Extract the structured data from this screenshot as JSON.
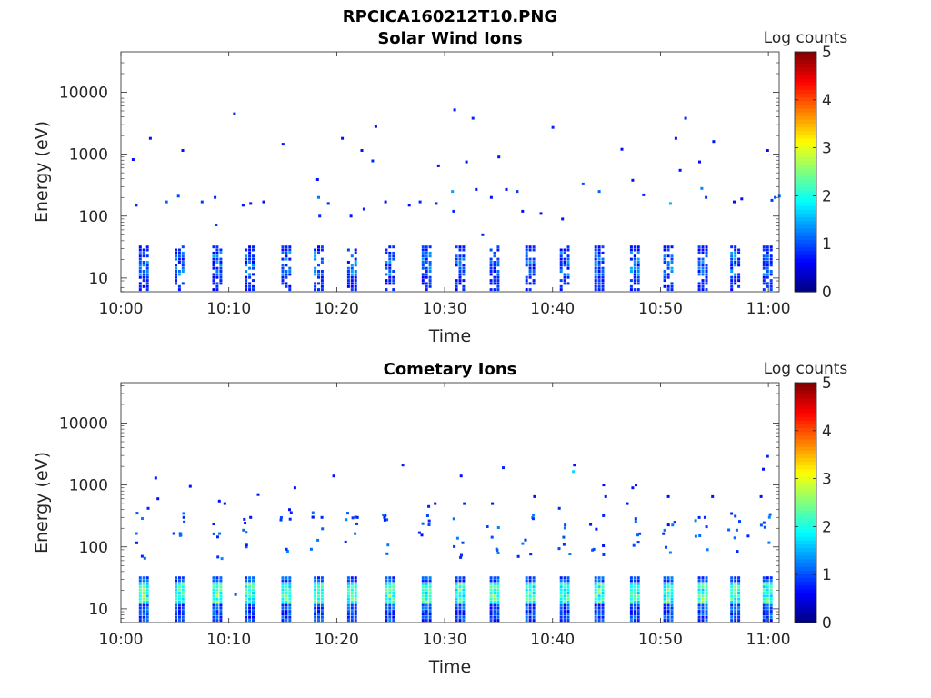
{
  "figure": {
    "title": "RPCICA160212T10.PNG"
  },
  "chart_data": [
    {
      "type": "heatmap",
      "title": "Solar Wind Ions",
      "xlabel": "Time",
      "ylabel": "Energy (eV)",
      "x_ticks": [
        "10:00",
        "10:10",
        "10:20",
        "10:30",
        "10:40",
        "10:50",
        "11:00"
      ],
      "x_tick_minutes": [
        0,
        10,
        20,
        30,
        40,
        50,
        60
      ],
      "xlim_minutes": [
        0,
        61
      ],
      "y_scale": "log",
      "y_ticks": [
        "10",
        "100",
        "1000",
        "10000"
      ],
      "y_tick_values": [
        10,
        100,
        1000,
        10000
      ],
      "ylim": [
        6,
        45000
      ],
      "colorbar": {
        "label": "Log counts",
        "ticks": [
          "0",
          "1",
          "2",
          "3",
          "4",
          "5"
        ],
        "range": [
          0,
          5
        ],
        "colormap": "jet"
      },
      "sweep_minutes": [
        2,
        5.3,
        8.8,
        11.8,
        15.2,
        18.2,
        21.3,
        24.8,
        28.2,
        31.3,
        34.5,
        37.8,
        41,
        44.2,
        47.5,
        50.6,
        53.8,
        56.8,
        59.8
      ],
      "events": [
        {
          "t": 1.0,
          "e": 820,
          "v": 0.7
        },
        {
          "t": 1.3,
          "e": 150,
          "v": 0.8
        },
        {
          "t": 2.6,
          "e": 1800,
          "v": 0.7
        },
        {
          "t": 4.1,
          "e": 170,
          "v": 1.1
        },
        {
          "t": 5.2,
          "e": 210,
          "v": 1.0
        },
        {
          "t": 5.6,
          "e": 1150,
          "v": 0.7
        },
        {
          "t": 7.4,
          "e": 170,
          "v": 0.9
        },
        {
          "t": 8.6,
          "e": 200,
          "v": 0.8
        },
        {
          "t": 8.7,
          "e": 72,
          "v": 0.9
        },
        {
          "t": 10.4,
          "e": 4500,
          "v": 0.8
        },
        {
          "t": 11.2,
          "e": 150,
          "v": 0.7
        },
        {
          "t": 11.9,
          "e": 160,
          "v": 0.7
        },
        {
          "t": 14.9,
          "e": 1450,
          "v": 0.7
        },
        {
          "t": 18.1,
          "e": 390,
          "v": 0.7
        },
        {
          "t": 18.2,
          "e": 200,
          "v": 1.2
        },
        {
          "t": 18.3,
          "e": 100,
          "v": 0.8
        },
        {
          "t": 19.1,
          "e": 160,
          "v": 0.8
        },
        {
          "t": 20.4,
          "e": 1800,
          "v": 0.7
        },
        {
          "t": 21.2,
          "e": 100,
          "v": 0.7
        },
        {
          "t": 22.2,
          "e": 1150,
          "v": 0.7
        },
        {
          "t": 22.4,
          "e": 130,
          "v": 0.8
        },
        {
          "t": 23.2,
          "e": 780,
          "v": 0.8
        },
        {
          "t": 23.5,
          "e": 2800,
          "v": 0.7
        },
        {
          "t": 24.4,
          "e": 170,
          "v": 0.7
        },
        {
          "t": 26.6,
          "e": 150,
          "v": 0.7
        },
        {
          "t": 29.1,
          "e": 160,
          "v": 0.8
        },
        {
          "t": 29.3,
          "e": 650,
          "v": 0.7
        },
        {
          "t": 30.6,
          "e": 250,
          "v": 1.4
        },
        {
          "t": 30.7,
          "e": 120,
          "v": 0.8
        },
        {
          "t": 30.8,
          "e": 5200,
          "v": 0.7
        },
        {
          "t": 31.9,
          "e": 750,
          "v": 0.7
        },
        {
          "t": 32.5,
          "e": 3800,
          "v": 0.8
        },
        {
          "t": 32.8,
          "e": 270,
          "v": 0.7
        },
        {
          "t": 33.4,
          "e": 50,
          "v": 0.8
        },
        {
          "t": 34.2,
          "e": 200,
          "v": 0.7
        },
        {
          "t": 34.9,
          "e": 900,
          "v": 0.7
        },
        {
          "t": 35.6,
          "e": 270,
          "v": 0.7
        },
        {
          "t": 36.6,
          "e": 250,
          "v": 0.9
        },
        {
          "t": 37.1,
          "e": 120,
          "v": 0.7
        },
        {
          "t": 38.8,
          "e": 110,
          "v": 0.7
        },
        {
          "t": 39.9,
          "e": 2700,
          "v": 0.8
        },
        {
          "t": 40.8,
          "e": 90,
          "v": 0.7
        },
        {
          "t": 42.7,
          "e": 330,
          "v": 1.0
        },
        {
          "t": 44.2,
          "e": 250,
          "v": 1.1
        },
        {
          "t": 46.3,
          "e": 1200,
          "v": 0.7
        },
        {
          "t": 47.3,
          "e": 380,
          "v": 0.7
        },
        {
          "t": 48.3,
          "e": 220,
          "v": 0.8
        },
        {
          "t": 50.8,
          "e": 160,
          "v": 1.5
        },
        {
          "t": 51.3,
          "e": 1800,
          "v": 0.7
        },
        {
          "t": 51.7,
          "e": 550,
          "v": 0.7
        },
        {
          "t": 52.2,
          "e": 3800,
          "v": 0.8
        },
        {
          "t": 53.5,
          "e": 750,
          "v": 0.7
        },
        {
          "t": 53.7,
          "e": 280,
          "v": 1.3
        },
        {
          "t": 54.1,
          "e": 200,
          "v": 0.9
        },
        {
          "t": 54.8,
          "e": 1600,
          "v": 0.7
        },
        {
          "t": 56.7,
          "e": 170,
          "v": 0.7
        },
        {
          "t": 57.4,
          "e": 190,
          "v": 0.7
        },
        {
          "t": 59.8,
          "e": 1150,
          "v": 0.7
        },
        {
          "t": 60.2,
          "e": 180,
          "v": 0.9
        },
        {
          "t": 60.5,
          "e": 200,
          "v": 1.0
        },
        {
          "t": 60.9,
          "e": 210,
          "v": 1.2
        },
        {
          "t": 27.6,
          "e": 170,
          "v": 0.8
        },
        {
          "t": 13.1,
          "e": 170,
          "v": 0.7
        }
      ]
    },
    {
      "type": "heatmap",
      "title": "Cometary Ions",
      "xlabel": "Time",
      "ylabel": "Energy (eV)",
      "x_ticks": [
        "10:00",
        "10:10",
        "10:20",
        "10:30",
        "10:40",
        "10:50",
        "11:00"
      ],
      "x_tick_minutes": [
        0,
        10,
        20,
        30,
        40,
        50,
        60
      ],
      "xlim_minutes": [
        0,
        61
      ],
      "y_scale": "log",
      "y_ticks": [
        "10",
        "100",
        "1000",
        "10000"
      ],
      "y_tick_values": [
        10,
        100,
        1000,
        10000
      ],
      "ylim": [
        6,
        45000
      ],
      "colorbar": {
        "label": "Log counts",
        "ticks": [
          "0",
          "1",
          "2",
          "3",
          "4",
          "5"
        ],
        "range": [
          0,
          5
        ],
        "colormap": "jet"
      },
      "sweep_minutes": [
        2,
        5.3,
        8.8,
        11.8,
        15.2,
        18.2,
        21.3,
        24.8,
        28.2,
        31.3,
        34.5,
        37.8,
        41,
        44.2,
        47.5,
        50.6,
        53.8,
        56.8,
        59.8
      ],
      "events": [
        {
          "t": 2.4,
          "e": 420,
          "v": 0.8
        },
        {
          "t": 3.1,
          "e": 1300,
          "v": 0.7
        },
        {
          "t": 3.3,
          "e": 600,
          "v": 0.7
        },
        {
          "t": 5.7,
          "e": 300,
          "v": 0.8
        },
        {
          "t": 6.3,
          "e": 950,
          "v": 0.7
        },
        {
          "t": 9.0,
          "e": 550,
          "v": 0.7
        },
        {
          "t": 9.5,
          "e": 500,
          "v": 0.7
        },
        {
          "t": 11.9,
          "e": 300,
          "v": 0.7
        },
        {
          "t": 12.6,
          "e": 700,
          "v": 0.7
        },
        {
          "t": 15.5,
          "e": 400,
          "v": 0.7
        },
        {
          "t": 16.0,
          "e": 900,
          "v": 0.7
        },
        {
          "t": 18.5,
          "e": 300,
          "v": 0.8
        },
        {
          "t": 19.6,
          "e": 1400,
          "v": 0.7
        },
        {
          "t": 21.8,
          "e": 300,
          "v": 0.8
        },
        {
          "t": 24.3,
          "e": 300,
          "v": 0.7
        },
        {
          "t": 26.0,
          "e": 2100,
          "v": 0.8
        },
        {
          "t": 28.4,
          "e": 450,
          "v": 0.8
        },
        {
          "t": 29.0,
          "e": 500,
          "v": 0.7
        },
        {
          "t": 31.4,
          "e": 1400,
          "v": 0.7
        },
        {
          "t": 31.7,
          "e": 500,
          "v": 0.8
        },
        {
          "t": 34.3,
          "e": 500,
          "v": 0.7
        },
        {
          "t": 35.3,
          "e": 1900,
          "v": 0.8
        },
        {
          "t": 36.7,
          "e": 70,
          "v": 0.8
        },
        {
          "t": 38.2,
          "e": 650,
          "v": 0.7
        },
        {
          "t": 40.5,
          "e": 420,
          "v": 0.8
        },
        {
          "t": 41.8,
          "e": 1650,
          "v": 1.7
        },
        {
          "t": 41.9,
          "e": 2100,
          "v": 0.7
        },
        {
          "t": 43.4,
          "e": 230,
          "v": 0.7
        },
        {
          "t": 44.6,
          "e": 1000,
          "v": 0.7
        },
        {
          "t": 44.8,
          "e": 650,
          "v": 0.7
        },
        {
          "t": 47.3,
          "e": 900,
          "v": 0.7
        },
        {
          "t": 47.6,
          "e": 1000,
          "v": 0.7
        },
        {
          "t": 50.6,
          "e": 650,
          "v": 0.7
        },
        {
          "t": 51.2,
          "e": 250,
          "v": 0.8
        },
        {
          "t": 54.0,
          "e": 300,
          "v": 0.8
        },
        {
          "t": 54.7,
          "e": 650,
          "v": 0.7
        },
        {
          "t": 57.0,
          "e": 85,
          "v": 0.8
        },
        {
          "t": 58.0,
          "e": 150,
          "v": 0.8
        },
        {
          "t": 59.4,
          "e": 1800,
          "v": 0.7
        },
        {
          "t": 59.8,
          "e": 2900,
          "v": 0.8
        },
        {
          "t": 59.2,
          "e": 650,
          "v": 0.7
        },
        {
          "t": 10.5,
          "e": 17,
          "v": 1.0
        },
        {
          "t": 46.8,
          "e": 500,
          "v": 0.7
        },
        {
          "t": 20.7,
          "e": 120,
          "v": 0.8
        }
      ]
    }
  ]
}
